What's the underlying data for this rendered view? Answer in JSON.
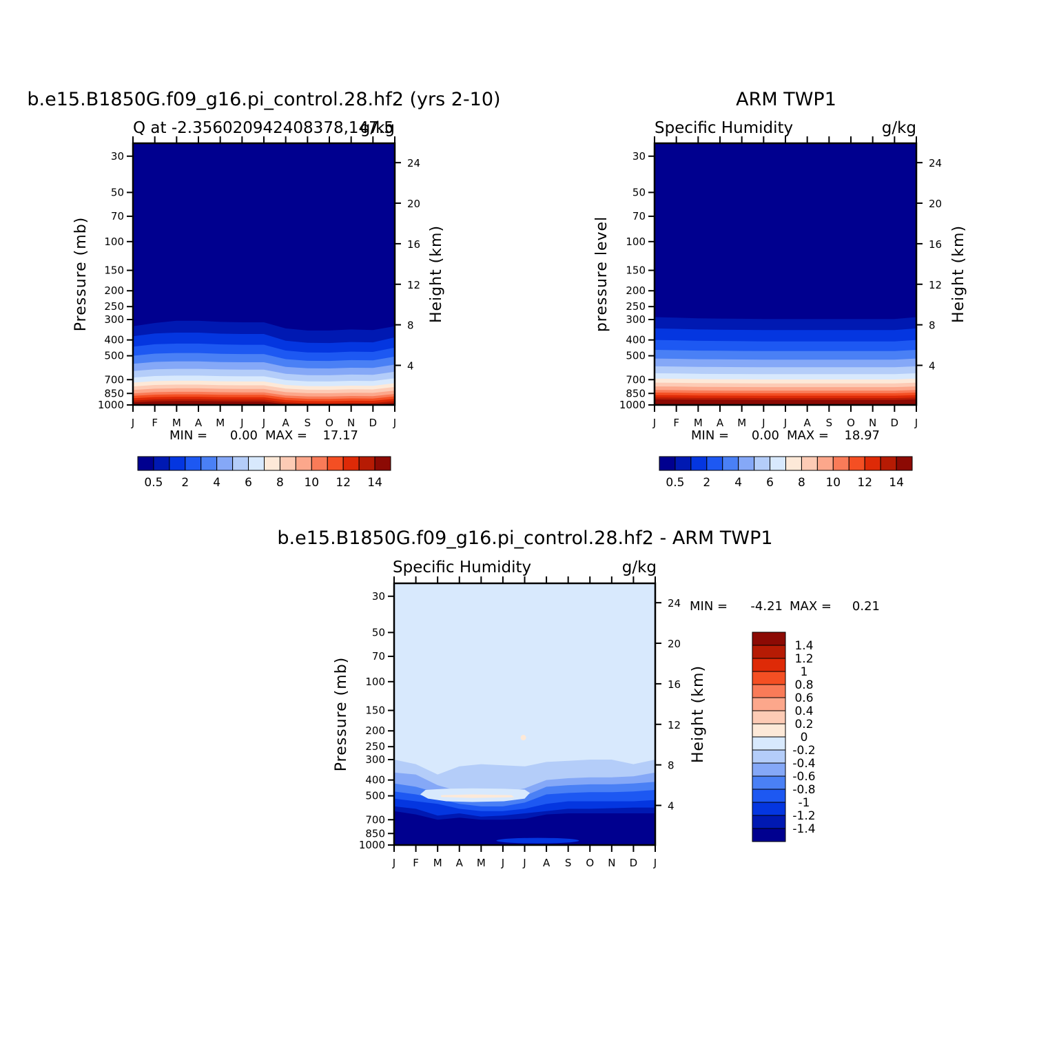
{
  "colors": {
    "ramp": [
      "#00008f",
      "#0019b2",
      "#0436e0",
      "#1d58f2",
      "#4a80f5",
      "#85a8f7",
      "#b4cdf9",
      "#d8e9fd",
      "#fde9d8",
      "#fdcbb5",
      "#fca78b",
      "#f97b58",
      "#f44f23",
      "#de2a07",
      "#b61b04",
      "#8c0a04"
    ],
    "diff_ramp": [
      "#00008f",
      "#0019b2",
      "#0436e0",
      "#1d58f2",
      "#4a80f5",
      "#85a8f7",
      "#b4cdf9",
      "#d8e9fd",
      "#fde9d8",
      "#fdcbb5",
      "#fca78b",
      "#f97b58",
      "#f44f23",
      "#de2a07",
      "#b61b04",
      "#8c0a04"
    ]
  },
  "chart_data": [
    {
      "type": "heatmap",
      "title": "b.e15.B1850G.f09_g16.pi_control.28.hf2 (yrs 2-10)",
      "left_subtitle": "Q at -2.356020942408378,147.5",
      "right_subtitle": "g/kg",
      "ylabel": "Pressure (mb)",
      "y2label": "Height (km)",
      "x_ticks": [
        "J",
        "F",
        "M",
        "A",
        "M",
        "J",
        "J",
        "A",
        "S",
        "O",
        "N",
        "D",
        "J"
      ],
      "pressure_ticks": [
        "30",
        "50",
        "70",
        "100",
        "150",
        "200",
        "250",
        "300",
        "400",
        "500",
        "700",
        "850",
        "1000"
      ],
      "pressure_values": [
        30,
        50,
        70,
        100,
        150,
        200,
        250,
        300,
        400,
        500,
        700,
        850,
        1000
      ],
      "height_ticks": [
        "24",
        "20",
        "16",
        "12",
        "8",
        "4"
      ],
      "height_values": [
        24,
        20,
        16,
        12,
        8,
        4
      ],
      "min_label": "MIN =",
      "min": "0.00",
      "max_label": "MAX =",
      "max": "17.17",
      "profile_top_p": [
        330,
        315,
        305,
        305,
        310,
        312,
        312,
        340,
        350,
        350,
        345,
        348,
        330
      ],
      "profile_scale": [
        1.0,
        1.0,
        1.05,
        1.05,
        1.05,
        1.05,
        1.05,
        1.12,
        1.14,
        1.15,
        1.14,
        1.13,
        1.05
      ],
      "colorbar_ticks": [
        "0.5",
        "2",
        "4",
        "6",
        "8",
        "10",
        "12",
        "14"
      ]
    },
    {
      "type": "heatmap",
      "title": "ARM TWP1",
      "left_subtitle": "Specific Humidity",
      "right_subtitle": "g/kg",
      "ylabel": "pressure level",
      "y2label": "Height (km)",
      "x_ticks": [
        "J",
        "F",
        "M",
        "A",
        "M",
        "J",
        "J",
        "A",
        "S",
        "O",
        "N",
        "D",
        "J"
      ],
      "pressure_ticks": [
        "30",
        "50",
        "70",
        "100",
        "150",
        "200",
        "250",
        "300",
        "400",
        "500",
        "700",
        "850",
        "1000"
      ],
      "pressure_values": [
        30,
        50,
        70,
        100,
        150,
        200,
        250,
        300,
        400,
        500,
        700,
        850,
        1000
      ],
      "height_ticks": [
        "24",
        "20",
        "16",
        "12",
        "8",
        "4"
      ],
      "height_values": [
        24,
        20,
        16,
        12,
        8,
        4
      ],
      "min_label": "MIN =",
      "min": "0.00",
      "max_label": "MAX =",
      "max": "18.97",
      "profile_top_p": [
        290,
        292,
        295,
        296,
        297,
        298,
        298,
        298,
        298,
        298,
        298,
        298,
        290
      ],
      "profile_scale": [
        1.0,
        1.0,
        1.0,
        1.0,
        1.0,
        1.0,
        1.0,
        1.0,
        1.0,
        1.0,
        1.0,
        1.0,
        1.0
      ],
      "colorbar_ticks": [
        "0.5",
        "2",
        "4",
        "6",
        "8",
        "10",
        "12",
        "14"
      ]
    },
    {
      "type": "heatmap",
      "title": "b.e15.B1850G.f09_g16.pi_control.28.hf2 - ARM TWP1",
      "left_subtitle": "Specific Humidity",
      "right_subtitle": "g/kg",
      "ylabel": "Pressure (mb)",
      "y2label": "Height (km)",
      "x_ticks": [
        "J",
        "F",
        "M",
        "A",
        "M",
        "J",
        "J",
        "A",
        "S",
        "O",
        "N",
        "D",
        "J"
      ],
      "pressure_ticks": [
        "30",
        "50",
        "70",
        "100",
        "150",
        "200",
        "250",
        "300",
        "400",
        "500",
        "700",
        "850",
        "1000"
      ],
      "pressure_values": [
        30,
        50,
        70,
        100,
        150,
        200,
        250,
        300,
        400,
        500,
        700,
        850,
        1000
      ],
      "height_ticks": [
        "24",
        "20",
        "16",
        "12",
        "8",
        "4"
      ],
      "height_values": [
        24,
        20,
        16,
        12,
        8,
        4
      ],
      "min_label": "MIN =",
      "min": "-4.21",
      "max_label": "MAX =",
      "max": "0.21",
      "colorbar_ticks": [
        "1.4",
        "1.2",
        "1",
        "0.8",
        "0.6",
        "0.4",
        "0.2",
        "0",
        "-0.2",
        "-0.4",
        "-0.6",
        "-0.8",
        "-1",
        "-1.2",
        "-1.4"
      ]
    }
  ]
}
